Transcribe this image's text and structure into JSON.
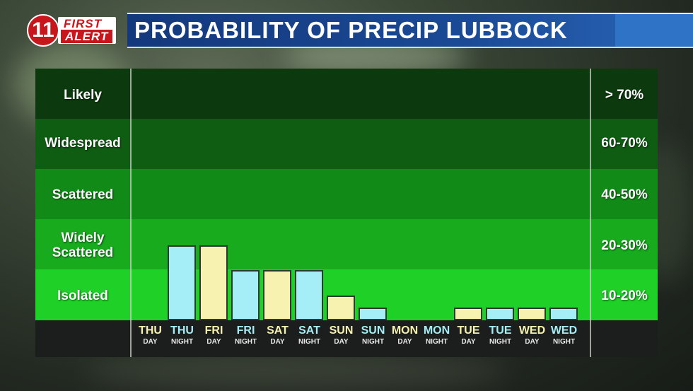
{
  "header": {
    "logo_number": "11",
    "logo_line1": "FIRST",
    "logo_line2": "ALERT",
    "title": "PROBABILITY OF PRECIP LUBBOCK"
  },
  "colors": {
    "day_bar": "#f7f2b0",
    "night_bar": "#a6eef7",
    "band_likely": "#0c3a0e",
    "band_widespread": "#0f5d13",
    "band_scattered": "#128a18",
    "band_widely_scattered": "#17ab1d",
    "band_isolated": "#1fd126"
  },
  "chart_data": {
    "type": "bar",
    "title": "PROBABILITY OF PRECIP LUBBOCK",
    "categories": [
      {
        "main": "THU",
        "sub": "DAY"
      },
      {
        "main": "THU",
        "sub": "NIGHT"
      },
      {
        "main": "FRI",
        "sub": "DAY"
      },
      {
        "main": "FRI",
        "sub": "NIGHT"
      },
      {
        "main": "SAT",
        "sub": "DAY"
      },
      {
        "main": "SAT",
        "sub": "NIGHT"
      },
      {
        "main": "SUN",
        "sub": "DAY"
      },
      {
        "main": "SUN",
        "sub": "NIGHT"
      },
      {
        "main": "MON",
        "sub": "DAY"
      },
      {
        "main": "MON",
        "sub": "NIGHT"
      },
      {
        "main": "TUE",
        "sub": "DAY"
      },
      {
        "main": "TUE",
        "sub": "NIGHT"
      },
      {
        "main": "WED",
        "sub": "DAY"
      },
      {
        "main": "WED",
        "sub": "NIGHT"
      }
    ],
    "values": [
      0,
      30,
      30,
      20,
      20,
      20,
      10,
      5,
      0,
      0,
      5,
      5,
      5,
      5
    ],
    "y_levels": [
      {
        "label": "Likely",
        "range": "> 70%"
      },
      {
        "label": "Widespread",
        "range": "60-70%"
      },
      {
        "label": "Scattered",
        "range": "40-50%"
      },
      {
        "label": "Widely Scattered",
        "range": "20-30%"
      },
      {
        "label": "Isolated",
        "range": "10-20%"
      }
    ],
    "ylim": [
      0,
      100
    ]
  }
}
